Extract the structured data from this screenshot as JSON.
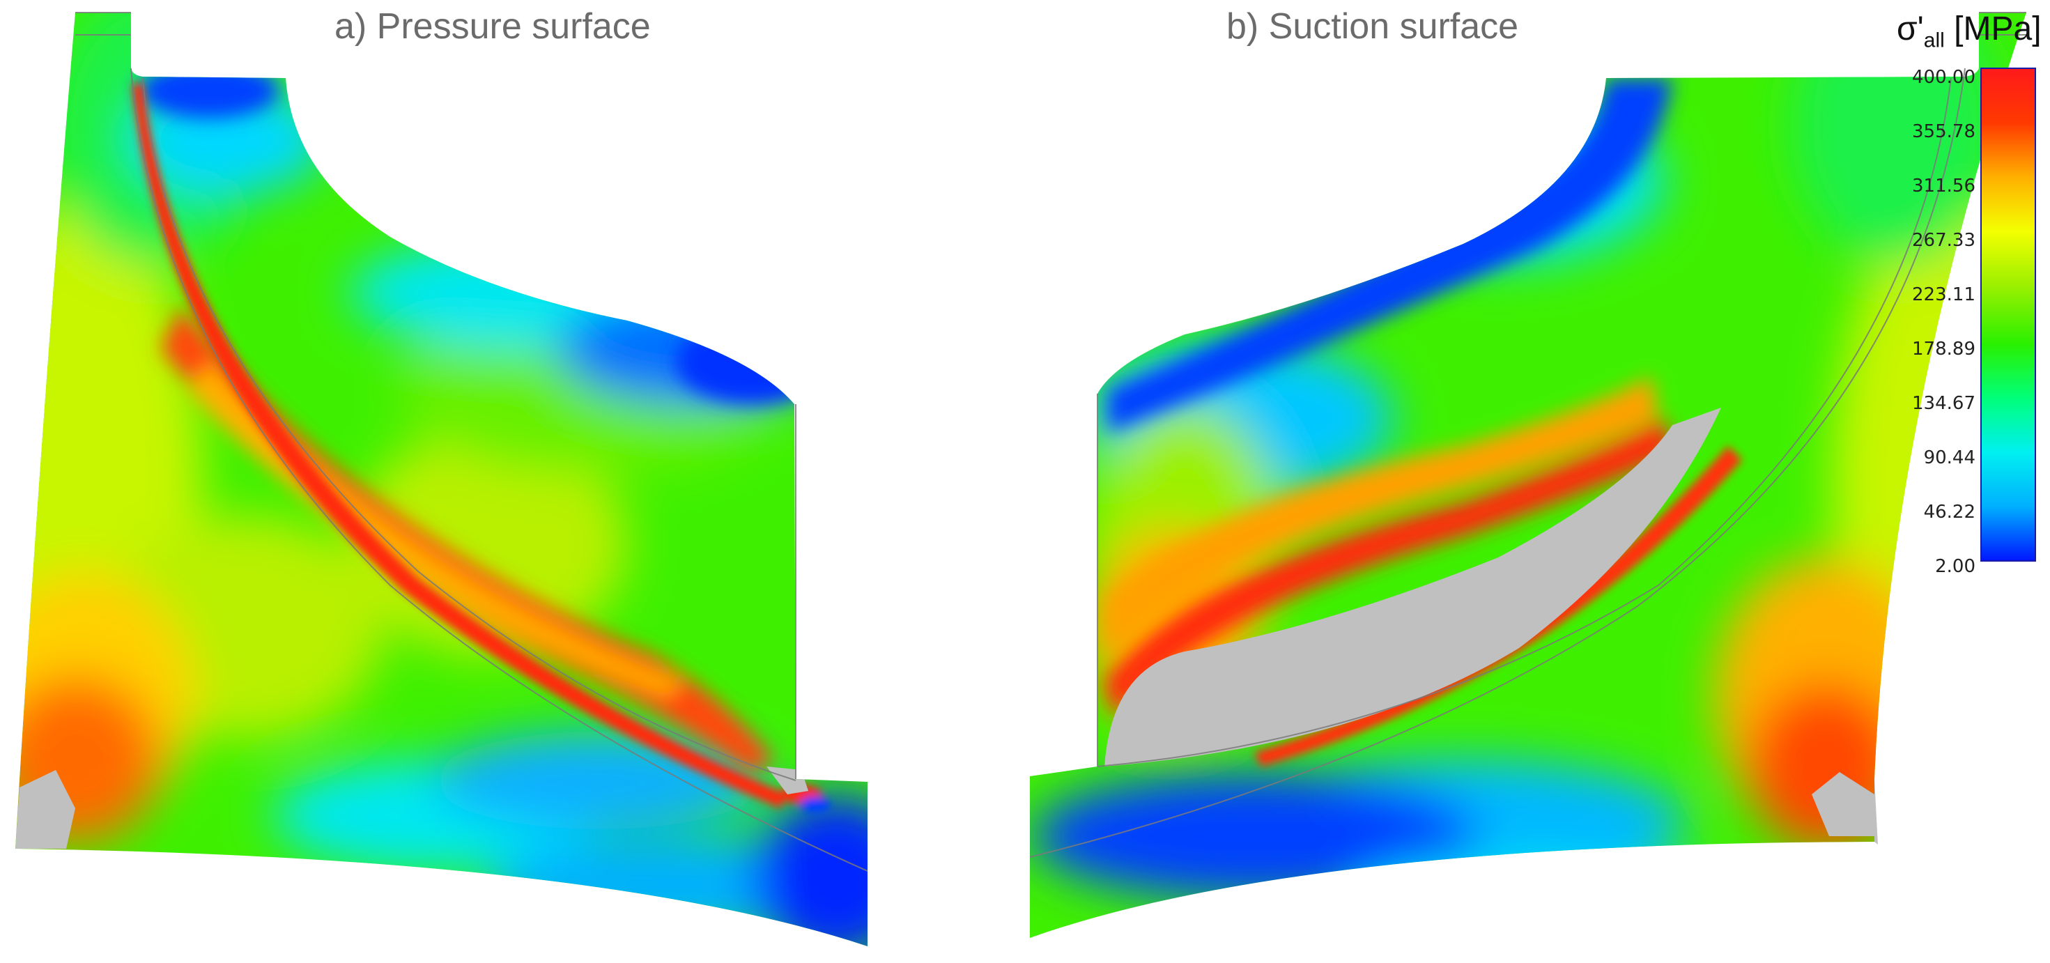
{
  "panels": [
    {
      "id": "pressure",
      "title": "a) Pressure surface"
    },
    {
      "id": "suction",
      "title": "b) Suction surface"
    }
  ],
  "legend": {
    "symbol": "σ'",
    "subscript": "all",
    "unit": "[MPa]",
    "ticks": [
      "400.00",
      "355.78",
      "311.56",
      "267.33",
      "223.11",
      "178.89",
      "134.67",
      "90.44",
      "46.22",
      "2.00"
    ],
    "min": 2.0,
    "max": 400.0,
    "colors": [
      "#0018ff",
      "#00b0ff",
      "#00f0f0",
      "#00ff7a",
      "#29f000",
      "#9cf000",
      "#f4ff00",
      "#ffb000",
      "#ff3a00",
      "#ff1a1a"
    ],
    "out_of_range_color": "#c0c0c0"
  }
}
